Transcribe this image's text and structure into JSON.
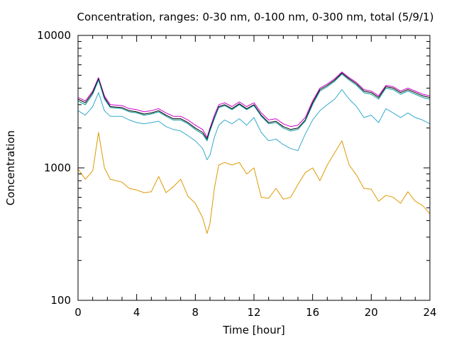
{
  "chart_data": {
    "type": "line",
    "title": "Concentration, ranges: 0-30 nm, 0-100 nm, 0-300 nm, total (5/9/1)",
    "xlabel": "Time [hour]",
    "ylabel": "Concentration",
    "xlim": [
      0,
      24
    ],
    "ylim": [
      100,
      10000
    ],
    "yscale": "log",
    "grid": false,
    "legend": "none",
    "x_ticks": [
      "0",
      "4",
      "8",
      "12",
      "16",
      "20",
      "24"
    ],
    "y_ticks": [
      "100",
      "1000",
      "10000"
    ],
    "x": [
      0,
      0.5,
      1.0,
      1.4,
      1.8,
      2.2,
      3.0,
      3.5,
      4.0,
      4.5,
      5.0,
      5.5,
      6.0,
      6.5,
      7.0,
      7.5,
      8.0,
      8.5,
      8.8,
      9.0,
      9.3,
      9.6,
      10.0,
      10.5,
      11.0,
      11.5,
      12.0,
      12.5,
      13.0,
      13.5,
      14.0,
      14.5,
      15.0,
      15.5,
      16.0,
      16.5,
      17.0,
      17.5,
      18.0,
      18.5,
      19.0,
      19.5,
      20.0,
      20.5,
      21.0,
      21.5,
      22.0,
      22.5,
      23.0,
      23.5,
      24.0
    ],
    "series": [
      {
        "color": "#cc00cc",
        "values": [
          3400,
          3200,
          3800,
          4800,
          3500,
          3000,
          2950,
          2800,
          2750,
          2650,
          2700,
          2800,
          2600,
          2450,
          2450,
          2300,
          2100,
          1950,
          1700,
          2000,
          2500,
          3000,
          3100,
          2900,
          3150,
          2900,
          3100,
          2600,
          2300,
          2350,
          2150,
          2050,
          2100,
          2400,
          3200,
          4000,
          4300,
          4700,
          5300,
          4800,
          4400,
          3900,
          3800,
          3500,
          4200,
          4100,
          3800,
          4000,
          3800,
          3600,
          3500
        ]
      },
      {
        "color": "#000000",
        "values": [
          3300,
          3100,
          3700,
          4700,
          3400,
          2900,
          2850,
          2700,
          2650,
          2550,
          2600,
          2700,
          2500,
          2350,
          2350,
          2200,
          2000,
          1850,
          1650,
          1950,
          2400,
          2900,
          3000,
          2800,
          3050,
          2800,
          3000,
          2500,
          2200,
          2250,
          2050,
          1950,
          2000,
          2300,
          3100,
          3900,
          4200,
          4600,
          5200,
          4700,
          4300,
          3800,
          3700,
          3400,
          4100,
          4000,
          3700,
          3900,
          3700,
          3500,
          3400
        ]
      },
      {
        "color": "#009999",
        "values": [
          3200,
          3000,
          3600,
          4600,
          3300,
          2850,
          2800,
          2650,
          2600,
          2500,
          2550,
          2650,
          2450,
          2300,
          2300,
          2150,
          1950,
          1800,
          1600,
          1900,
          2350,
          2850,
          2950,
          2750,
          3000,
          2750,
          2950,
          2450,
          2150,
          2200,
          2000,
          1900,
          1950,
          2250,
          3000,
          3800,
          4100,
          4500,
          5100,
          4600,
          4200,
          3700,
          3600,
          3300,
          4000,
          3900,
          3600,
          3800,
          3600,
          3400,
          3300
        ]
      },
      {
        "color": "#33aacc",
        "values": [
          2700,
          2500,
          2900,
          3700,
          2700,
          2450,
          2450,
          2300,
          2200,
          2150,
          2200,
          2250,
          2050,
          1950,
          1900,
          1750,
          1600,
          1400,
          1150,
          1250,
          1700,
          2100,
          2300,
          2150,
          2350,
          2100,
          2400,
          1850,
          1600,
          1650,
          1500,
          1400,
          1350,
          1800,
          2300,
          2700,
          3000,
          3300,
          3900,
          3300,
          2900,
          2400,
          2500,
          2200,
          2800,
          2600,
          2400,
          2600,
          2400,
          2300,
          2150
        ]
      },
      {
        "color": "#dd9900",
        "values": [
          980,
          820,
          950,
          1850,
          1000,
          820,
          780,
          700,
          680,
          650,
          660,
          860,
          650,
          720,
          820,
          610,
          540,
          420,
          320,
          380,
          700,
          1050,
          1100,
          1050,
          1100,
          900,
          1000,
          600,
          590,
          700,
          580,
          600,
          750,
          920,
          1000,
          800,
          1050,
          1300,
          1600,
          1050,
          880,
          700,
          690,
          560,
          620,
          600,
          540,
          660,
          560,
          520,
          450
        ]
      }
    ]
  }
}
